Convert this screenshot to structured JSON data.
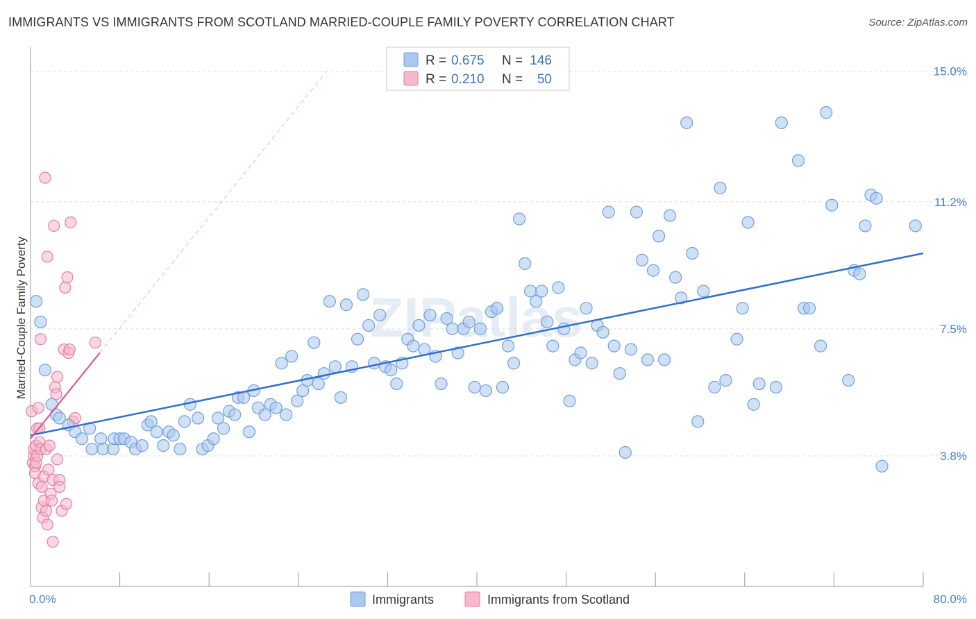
{
  "title": "IMMIGRANTS VS IMMIGRANTS FROM SCOTLAND MARRIED-COUPLE FAMILY POVERTY CORRELATION CHART",
  "source": "Source: ZipAtlas.com",
  "watermark": "ZIPatlas",
  "colors": {
    "blue_fill": "#aac8ef",
    "blue_stroke": "#6f9fdc",
    "blue_line": "#2f6fcc",
    "pink_fill": "#f5b8cc",
    "pink_stroke": "#e57ea0",
    "pink_line": "#e8558a",
    "tick_blue": "#4a7cc9",
    "grid": "#dddddd"
  },
  "legend": {
    "rows": [
      {
        "r_label": "R =",
        "r_value": "0.675",
        "n_label": "N =",
        "n_value": "146"
      },
      {
        "r_label": "R =",
        "r_value": "0.210",
        "n_label": "N =",
        "n_value": "50"
      }
    ]
  },
  "bottom_legend": [
    "Immigrants",
    "Immigrants from Scotland"
  ],
  "chart_data": {
    "type": "scatter",
    "ylabel": "Married-Couple Family Poverty",
    "xlabel": "",
    "xlim": [
      0,
      80
    ],
    "ylim": [
      0,
      15.5
    ],
    "x_tick_labels": [
      "0.0%",
      "80.0%"
    ],
    "y_ticks": [
      3.8,
      7.5,
      11.2,
      15.0
    ],
    "y_tick_labels": [
      "3.8%",
      "7.5%",
      "11.2%",
      "15.0%"
    ],
    "grid": true,
    "legend_position": "top-center",
    "series": [
      {
        "name": "Immigrants",
        "color": "#aac8ef",
        "trend": {
          "x": [
            0,
            80
          ],
          "y": [
            4.4,
            9.7
          ]
        },
        "points": [
          [
            0.5,
            8.3
          ],
          [
            0.9,
            7.7
          ],
          [
            1.3,
            6.3
          ],
          [
            1.9,
            5.3
          ],
          [
            2.3,
            5.0
          ],
          [
            2.6,
            4.9
          ],
          [
            3.4,
            4.7
          ],
          [
            4.0,
            4.5
          ],
          [
            4.6,
            4.3
          ],
          [
            5.3,
            4.6
          ],
          [
            5.5,
            4.0
          ],
          [
            6.3,
            4.3
          ],
          [
            6.5,
            4.0
          ],
          [
            7.4,
            4.0
          ],
          [
            7.5,
            4.3
          ],
          [
            8.0,
            4.3
          ],
          [
            8.4,
            4.3
          ],
          [
            9.0,
            4.2
          ],
          [
            9.4,
            4.0
          ],
          [
            10.0,
            4.1
          ],
          [
            10.5,
            4.7
          ],
          [
            10.8,
            4.8
          ],
          [
            11.3,
            4.5
          ],
          [
            11.9,
            4.1
          ],
          [
            12.4,
            4.5
          ],
          [
            12.8,
            4.4
          ],
          [
            13.4,
            4.0
          ],
          [
            13.8,
            4.8
          ],
          [
            14.3,
            5.3
          ],
          [
            15.0,
            4.9
          ],
          [
            15.4,
            4.0
          ],
          [
            15.9,
            4.1
          ],
          [
            16.4,
            4.3
          ],
          [
            16.8,
            4.9
          ],
          [
            17.3,
            4.6
          ],
          [
            17.8,
            5.1
          ],
          [
            18.3,
            5.0
          ],
          [
            18.6,
            5.5
          ],
          [
            19.1,
            5.5
          ],
          [
            19.6,
            4.5
          ],
          [
            20.0,
            5.7
          ],
          [
            20.4,
            5.2
          ],
          [
            21.0,
            5.0
          ],
          [
            21.5,
            5.3
          ],
          [
            22.0,
            5.2
          ],
          [
            22.5,
            6.5
          ],
          [
            22.9,
            5.0
          ],
          [
            23.4,
            6.7
          ],
          [
            23.9,
            5.4
          ],
          [
            24.4,
            5.7
          ],
          [
            24.8,
            6.0
          ],
          [
            25.4,
            7.1
          ],
          [
            25.8,
            5.9
          ],
          [
            26.3,
            6.2
          ],
          [
            26.8,
            8.3
          ],
          [
            27.3,
            6.4
          ],
          [
            27.8,
            5.5
          ],
          [
            28.3,
            8.2
          ],
          [
            28.8,
            6.4
          ],
          [
            29.3,
            7.2
          ],
          [
            29.8,
            8.5
          ],
          [
            30.3,
            7.6
          ],
          [
            30.8,
            6.5
          ],
          [
            31.3,
            7.9
          ],
          [
            31.8,
            6.4
          ],
          [
            32.3,
            6.3
          ],
          [
            32.8,
            5.9
          ],
          [
            33.3,
            6.5
          ],
          [
            33.8,
            7.2
          ],
          [
            34.3,
            7.0
          ],
          [
            34.8,
            7.6
          ],
          [
            35.3,
            6.9
          ],
          [
            35.8,
            7.9
          ],
          [
            36.3,
            6.7
          ],
          [
            36.8,
            5.9
          ],
          [
            37.3,
            7.8
          ],
          [
            37.8,
            7.5
          ],
          [
            38.3,
            6.8
          ],
          [
            38.8,
            7.5
          ],
          [
            39.3,
            7.7
          ],
          [
            39.8,
            5.8
          ],
          [
            40.3,
            7.5
          ],
          [
            40.8,
            5.7
          ],
          [
            41.3,
            8.0
          ],
          [
            41.8,
            8.1
          ],
          [
            42.3,
            5.8
          ],
          [
            42.8,
            7.0
          ],
          [
            43.3,
            6.5
          ],
          [
            43.8,
            10.7
          ],
          [
            44.3,
            9.4
          ],
          [
            44.8,
            8.6
          ],
          [
            45.3,
            8.3
          ],
          [
            45.8,
            8.6
          ],
          [
            46.3,
            7.7
          ],
          [
            46.8,
            7.0
          ],
          [
            47.3,
            8.7
          ],
          [
            47.8,
            7.5
          ],
          [
            48.3,
            5.4
          ],
          [
            48.8,
            6.6
          ],
          [
            49.3,
            6.8
          ],
          [
            49.8,
            8.1
          ],
          [
            50.3,
            6.5
          ],
          [
            50.8,
            7.6
          ],
          [
            51.3,
            7.4
          ],
          [
            51.8,
            10.9
          ],
          [
            52.3,
            7.0
          ],
          [
            52.8,
            6.2
          ],
          [
            53.3,
            3.9
          ],
          [
            53.8,
            6.9
          ],
          [
            54.3,
            10.9
          ],
          [
            54.8,
            9.5
          ],
          [
            55.3,
            6.6
          ],
          [
            55.8,
            9.2
          ],
          [
            56.3,
            10.2
          ],
          [
            56.8,
            6.6
          ],
          [
            57.3,
            10.8
          ],
          [
            57.8,
            9.0
          ],
          [
            58.3,
            8.4
          ],
          [
            58.8,
            13.5
          ],
          [
            59.3,
            9.7
          ],
          [
            59.8,
            4.8
          ],
          [
            60.3,
            8.6
          ],
          [
            61.3,
            5.8
          ],
          [
            61.8,
            11.6
          ],
          [
            62.3,
            6.0
          ],
          [
            63.3,
            7.2
          ],
          [
            63.8,
            8.1
          ],
          [
            64.3,
            10.6
          ],
          [
            64.8,
            5.3
          ],
          [
            65.3,
            5.9
          ],
          [
            66.8,
            5.8
          ],
          [
            67.3,
            13.5
          ],
          [
            68.8,
            12.4
          ],
          [
            69.3,
            8.1
          ],
          [
            69.8,
            8.1
          ],
          [
            70.8,
            7.0
          ],
          [
            71.3,
            13.8
          ],
          [
            71.8,
            11.1
          ],
          [
            73.3,
            6.0
          ],
          [
            73.8,
            9.2
          ],
          [
            74.3,
            9.1
          ],
          [
            74.8,
            10.5
          ],
          [
            75.3,
            11.4
          ],
          [
            75.8,
            11.3
          ],
          [
            76.3,
            3.5
          ],
          [
            79.3,
            10.5
          ]
        ]
      },
      {
        "name": "Immigrants from Scotland",
        "color": "#f5b8cc",
        "trend": {
          "x": [
            0,
            6.2
          ],
          "y": [
            4.3,
            6.8
          ]
        },
        "points": [
          [
            0.1,
            5.1
          ],
          [
            0.2,
            3.6
          ],
          [
            0.3,
            3.8
          ],
          [
            0.3,
            4.0
          ],
          [
            0.4,
            3.5
          ],
          [
            0.4,
            3.3
          ],
          [
            0.5,
            3.6
          ],
          [
            0.5,
            4.1
          ],
          [
            0.6,
            4.6
          ],
          [
            0.6,
            3.8
          ],
          [
            0.7,
            5.2
          ],
          [
            0.7,
            3.0
          ],
          [
            0.8,
            4.6
          ],
          [
            0.8,
            4.2
          ],
          [
            0.9,
            4.0
          ],
          [
            0.9,
            7.2
          ],
          [
            1.0,
            2.9
          ],
          [
            1.0,
            2.3
          ],
          [
            1.1,
            2.0
          ],
          [
            1.2,
            3.2
          ],
          [
            1.2,
            2.5
          ],
          [
            1.3,
            11.9
          ],
          [
            1.4,
            4.0
          ],
          [
            1.4,
            2.2
          ],
          [
            1.5,
            1.8
          ],
          [
            1.5,
            9.6
          ],
          [
            1.6,
            3.4
          ],
          [
            1.7,
            4.1
          ],
          [
            1.8,
            2.7
          ],
          [
            1.9,
            2.5
          ],
          [
            2.0,
            1.3
          ],
          [
            2.0,
            3.1
          ],
          [
            2.1,
            10.5
          ],
          [
            2.2,
            5.8
          ],
          [
            2.3,
            5.6
          ],
          [
            2.4,
            6.1
          ],
          [
            2.4,
            3.7
          ],
          [
            2.6,
            3.1
          ],
          [
            2.6,
            2.9
          ],
          [
            2.8,
            2.2
          ],
          [
            3.0,
            6.9
          ],
          [
            3.1,
            8.7
          ],
          [
            3.2,
            2.4
          ],
          [
            3.3,
            9.0
          ],
          [
            3.4,
            6.8
          ],
          [
            3.5,
            6.9
          ],
          [
            3.6,
            10.6
          ],
          [
            3.8,
            4.8
          ],
          [
            4.0,
            4.9
          ],
          [
            5.8,
            7.1
          ]
        ]
      }
    ]
  }
}
